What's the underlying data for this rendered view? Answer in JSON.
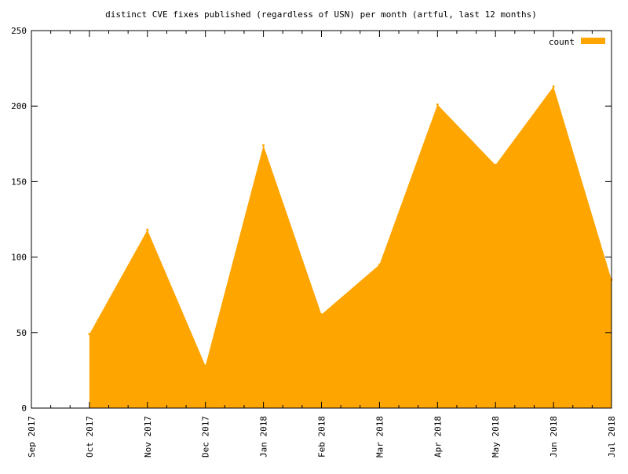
{
  "chart_data": {
    "type": "area",
    "title": "distinct CVE fixes published (regardless of USN) per month (artful, last 12 months)",
    "xlabel": "",
    "ylabel": "",
    "x_ticks": [
      "Sep 2017",
      "Oct 2017",
      "Nov 2017",
      "Dec 2017",
      "Jan 2018",
      "Feb 2018",
      "Mar 2018",
      "Apr 2018",
      "May 2018",
      "Jun 2018",
      "Jul 2018"
    ],
    "y_ticks": [
      "0",
      "50",
      "100",
      "150",
      "200",
      "250"
    ],
    "ylim": [
      0,
      250
    ],
    "grid": false,
    "legend_position": "top-right",
    "series": [
      {
        "name": "count",
        "color": "#ffa500",
        "x": [
          "Oct 2017",
          "Nov 2017",
          "Dec 2017",
          "Jan 2018",
          "Feb 2018",
          "Mar 2018",
          "Apr 2018",
          "May 2018",
          "Jun 2018",
          "Jul 2018"
        ],
        "values": [
          49,
          118,
          28,
          174,
          62,
          95,
          201,
          161,
          213,
          85
        ]
      }
    ]
  }
}
